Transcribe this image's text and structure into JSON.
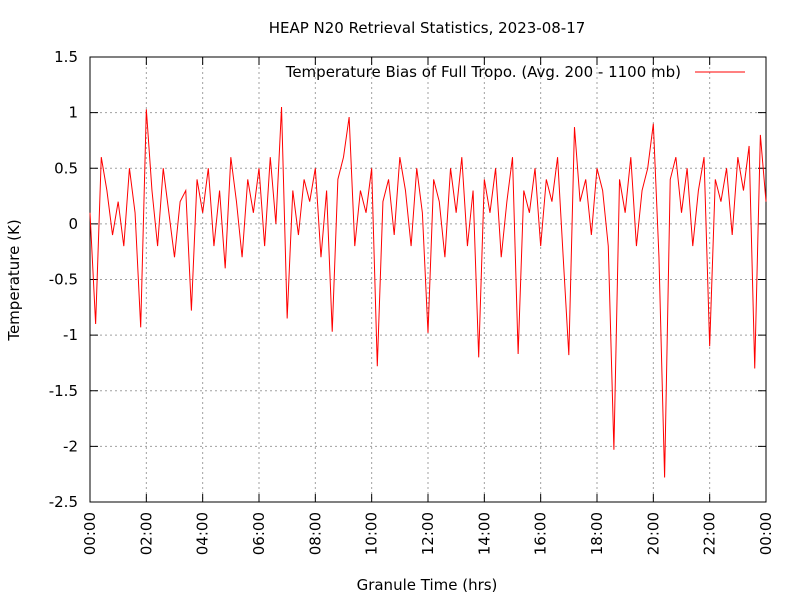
{
  "chart_data": {
    "type": "line",
    "title": "HEAP N20 Retrieval Statistics, 2023-08-17",
    "xlabel": "Granule Time (hrs)",
    "ylabel": "Temperature (K)",
    "legend": "top-right",
    "grid": true,
    "xlim": [
      0,
      24
    ],
    "ylim": [
      -2.5,
      1.5
    ],
    "yticks": [
      -2.5,
      -2,
      -1.5,
      -1,
      -0.5,
      0,
      0.5,
      1,
      1.5
    ],
    "xticks": [
      {
        "value": 0,
        "label": "00:00"
      },
      {
        "value": 2,
        "label": "02:00"
      },
      {
        "value": 4,
        "label": "04:00"
      },
      {
        "value": 6,
        "label": "06:00"
      },
      {
        "value": 8,
        "label": "08:00"
      },
      {
        "value": 10,
        "label": "10:00"
      },
      {
        "value": 12,
        "label": "12:00"
      },
      {
        "value": 14,
        "label": "14:00"
      },
      {
        "value": 16,
        "label": "16:00"
      },
      {
        "value": 18,
        "label": "18:00"
      },
      {
        "value": 20,
        "label": "20:00"
      },
      {
        "value": 22,
        "label": "22:00"
      },
      {
        "value": 24,
        "label": "00:00"
      }
    ],
    "x": [
      0,
      0.2,
      0.4,
      0.6,
      0.8,
      1,
      1.2,
      1.4,
      1.6,
      1.8,
      2,
      2.2,
      2.4,
      2.6,
      2.8,
      3,
      3.2,
      3.4,
      3.6,
      3.8,
      4,
      4.2,
      4.4,
      4.6,
      4.8,
      5,
      5.2,
      5.4,
      5.6,
      5.8,
      6,
      6.2,
      6.4,
      6.6,
      6.8,
      7,
      7.2,
      7.4,
      7.6,
      7.8,
      8,
      8.2,
      8.4,
      8.6,
      8.8,
      9,
      9.2,
      9.4,
      9.6,
      9.8,
      10,
      10.2,
      10.4,
      10.6,
      10.8,
      11,
      11.2,
      11.4,
      11.6,
      11.8,
      12,
      12.2,
      12.4,
      12.6,
      12.8,
      13,
      13.2,
      13.4,
      13.6,
      13.8,
      14,
      14.2,
      14.4,
      14.6,
      14.8,
      15,
      15.2,
      15.4,
      15.6,
      15.8,
      16,
      16.2,
      16.4,
      16.6,
      16.8,
      17,
      17.2,
      17.4,
      17.6,
      17.8,
      18,
      18.2,
      18.4,
      18.6,
      18.8,
      19,
      19.2,
      19.4,
      19.6,
      19.8,
      20,
      20.2,
      20.4,
      20.6,
      20.8,
      21,
      21.2,
      21.4,
      21.6,
      21.8,
      22,
      22.2,
      22.4,
      22.6,
      22.8,
      23,
      23.2,
      23.4,
      23.6,
      23.8,
      24
    ],
    "series": [
      {
        "name": "Temperature Bias of Full Tropo. (Avg. 200 - 1100 mb)",
        "color": "#ff0000",
        "values": [
          0.1,
          -0.9,
          0.6,
          0.3,
          -0.1,
          0.2,
          -0.2,
          0.5,
          0.1,
          -0.93,
          1.03,
          0.3,
          -0.2,
          0.5,
          0.1,
          -0.3,
          0.2,
          0.3,
          -0.78,
          0.4,
          0.1,
          0.5,
          -0.2,
          0.3,
          -0.4,
          0.6,
          0.2,
          -0.3,
          0.4,
          0.1,
          0.5,
          -0.2,
          0.6,
          0.0,
          1.05,
          -0.85,
          0.3,
          -0.1,
          0.4,
          0.2,
          0.5,
          -0.3,
          0.3,
          -0.97,
          0.4,
          0.6,
          0.96,
          -0.2,
          0.3,
          0.1,
          0.5,
          -1.28,
          0.2,
          0.4,
          -0.1,
          0.6,
          0.3,
          -0.2,
          0.5,
          0.1,
          -0.98,
          0.4,
          0.2,
          -0.3,
          0.5,
          0.1,
          0.6,
          -0.2,
          0.3,
          -1.2,
          0.4,
          0.1,
          0.5,
          -0.3,
          0.2,
          0.6,
          -1.17,
          0.3,
          0.1,
          0.5,
          -0.2,
          0.4,
          0.2,
          0.6,
          -0.3,
          -1.18,
          0.87,
          0.2,
          0.4,
          -0.1,
          0.5,
          0.3,
          -0.2,
          -2.03,
          0.4,
          0.1,
          0.6,
          -0.2,
          0.3,
          0.5,
          0.9,
          -0.3,
          -2.28,
          0.4,
          0.6,
          0.1,
          0.5,
          -0.2,
          0.3,
          0.6,
          -1.1,
          0.4,
          0.2,
          0.5,
          -0.1,
          0.6,
          0.3,
          0.7,
          -1.3,
          0.8,
          0.2
        ]
      }
    ]
  }
}
